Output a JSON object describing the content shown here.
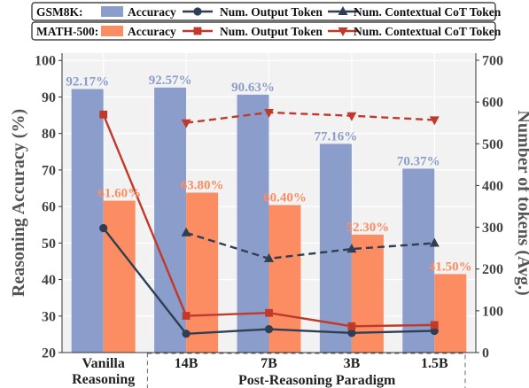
{
  "chart_data": {
    "type": "bar",
    "categories": [
      "Vanilla\nReasoning",
      "14B",
      "7B",
      "3B",
      "1.5B"
    ],
    "xlabel": "Post-Reasoning Paradigm",
    "ylabel": "Reasoning Accuracy (%)",
    "ylabel_right": "Number of tokens (Avg.)",
    "ylim": [
      20,
      102
    ],
    "ylim_right": [
      0,
      717
    ],
    "yticks": [
      20,
      30,
      40,
      50,
      60,
      70,
      80,
      90,
      100
    ],
    "yticks_right": [
      0,
      100,
      200,
      300,
      400,
      500,
      600,
      700
    ],
    "grid": true,
    "series": [
      {
        "name": "Accuracy",
        "group": "GSM8K",
        "kind": "bar",
        "axis": "left",
        "color": "#8b9dca",
        "values": [
          92.17,
          92.57,
          90.63,
          77.16,
          70.37
        ],
        "labels": [
          "92.17%",
          "92.57%",
          "90.63%",
          "77.16%",
          "70.37%"
        ]
      },
      {
        "name": "Accuracy",
        "group": "MATH-500",
        "kind": "bar",
        "axis": "left",
        "color": "#fc8d62",
        "values": [
          61.6,
          63.8,
          60.4,
          52.3,
          41.5
        ],
        "labels": [
          "61.60%",
          "63.80%",
          "60.40%",
          "52.30%",
          "41.50%"
        ]
      },
      {
        "name": "Num. Output Token",
        "group": "GSM8K",
        "kind": "line",
        "axis": "right",
        "color": "#2f3e52",
        "marker": "circle",
        "values": [
          298,
          45,
          56,
          47,
          52
        ]
      },
      {
        "name": "Num. Contextual CoT Token",
        "group": "GSM8K",
        "kind": "line-dashed",
        "axis": "right",
        "color": "#2f3e52",
        "marker": "triangle-up",
        "values": [
          null,
          287,
          225,
          248,
          262
        ]
      },
      {
        "name": "Num. Output Token",
        "group": "MATH-500",
        "kind": "line",
        "axis": "right",
        "color": "#c0392b",
        "marker": "square",
        "values": [
          570,
          88,
          95,
          63,
          66
        ]
      },
      {
        "name": "Num. Contextual CoT Token",
        "group": "MATH-500",
        "kind": "line-dashed",
        "axis": "right",
        "color": "#c0392b",
        "marker": "triangle-down",
        "values": [
          null,
          550,
          575,
          567,
          557
        ]
      }
    ],
    "legend": {
      "placement": "top",
      "rows": [
        {
          "label": "GSM8K:",
          "entries": [
            "Accuracy",
            "Num. Output Token",
            "Num. Contextual CoT Token"
          ]
        },
        {
          "label": "MATH-500:",
          "entries": [
            "Accuracy",
            "Num. Output Token",
            "Num. Contextual CoT Token"
          ]
        }
      ]
    }
  }
}
